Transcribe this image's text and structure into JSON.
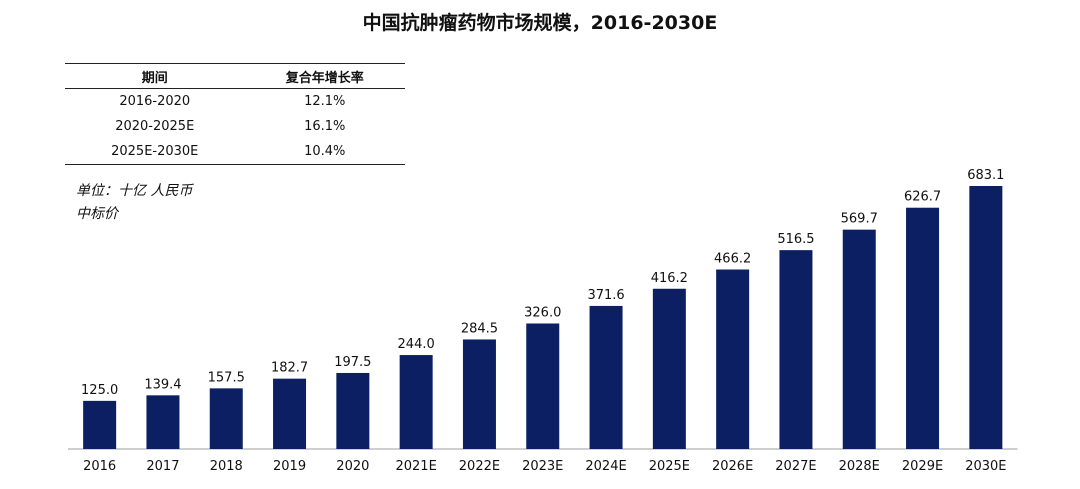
{
  "title": "中国抗肿瘤药物市场规模，2016-2030E",
  "cagr_table": {
    "headers": [
      "期间",
      "复合年增长率"
    ],
    "rows": [
      [
        "2016-2020",
        "12.1%"
      ],
      [
        "2020-2025E",
        "16.1%"
      ],
      [
        "2025E-2030E",
        "10.4%"
      ]
    ]
  },
  "unit_note": [
    "单位：十亿 人民币",
    "中标价"
  ],
  "colors": {
    "bar": "#0c1f63",
    "axis": "#bfbfbf"
  },
  "chart_data": {
    "type": "bar",
    "title": "中国抗肿瘤药物市场规模，2016-2030E",
    "xlabel": "",
    "ylabel": "",
    "categories": [
      "2016",
      "2017",
      "2018",
      "2019",
      "2020",
      "2021E",
      "2022E",
      "2023E",
      "2024E",
      "2025E",
      "2026E",
      "2027E",
      "2028E",
      "2029E",
      "2030E"
    ],
    "values": [
      125.0,
      139.4,
      157.5,
      182.7,
      197.5,
      244.0,
      284.5,
      326.0,
      371.6,
      416.2,
      466.2,
      516.5,
      569.7,
      626.7,
      683.1
    ],
    "value_labels": [
      "125.0",
      "139.4",
      "157.5",
      "182.7",
      "197.5",
      "244.0",
      "284.5",
      "326.0",
      "371.6",
      "416.2",
      "466.2",
      "516.5",
      "569.7",
      "626.7",
      "683.1"
    ],
    "ylim": [
      0,
      683.1
    ],
    "grid": false,
    "legend": "none"
  }
}
